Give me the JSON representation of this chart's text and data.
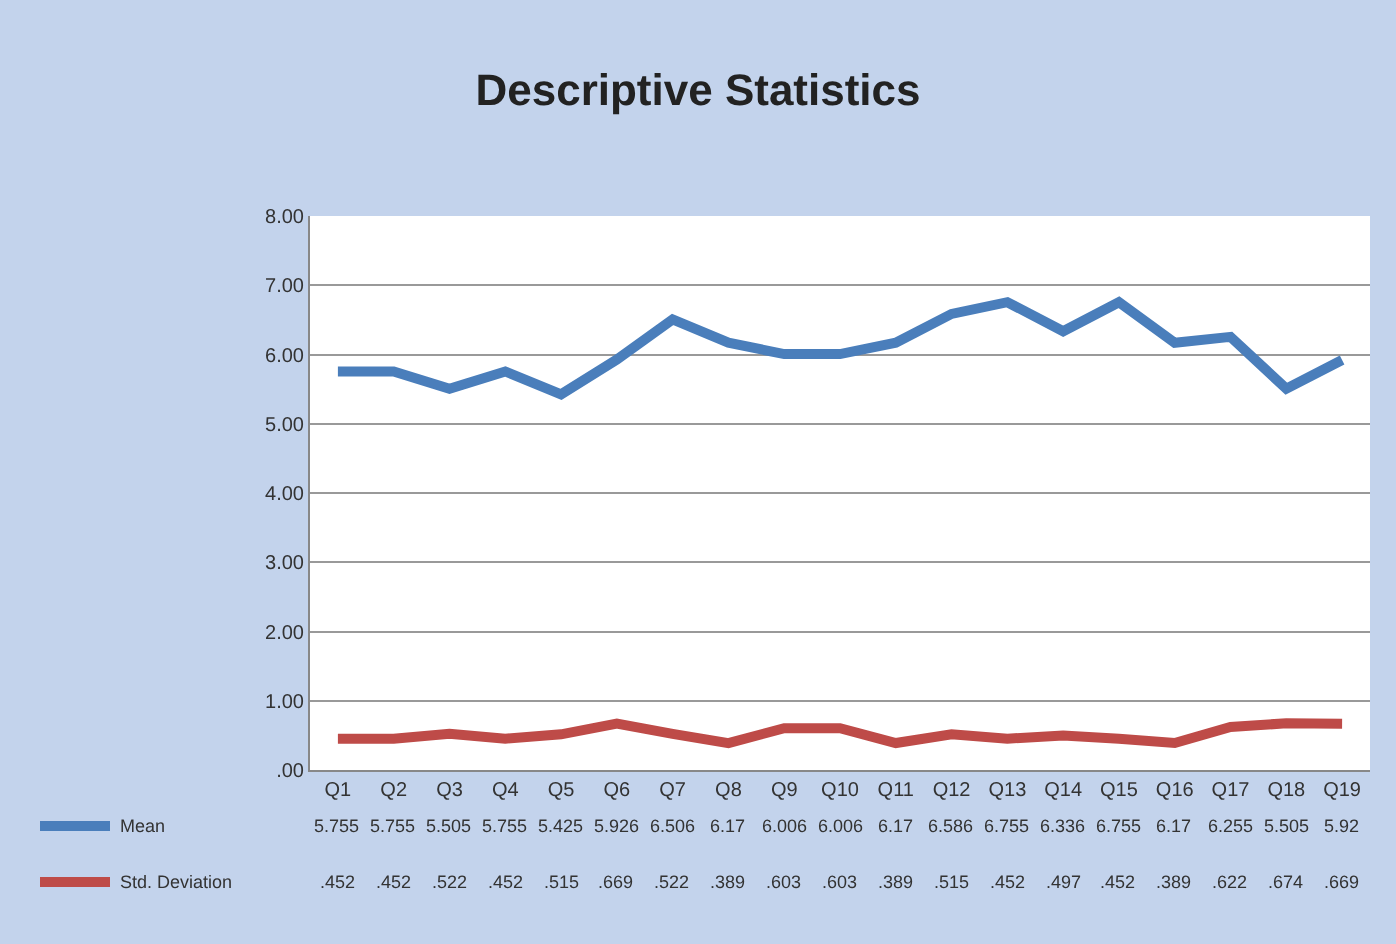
{
  "chart_data": {
    "type": "line",
    "title": "Descriptive Statistics",
    "categories": [
      "Q1",
      "Q2",
      "Q3",
      "Q4",
      "Q5",
      "Q6",
      "Q7",
      "Q8",
      "Q9",
      "Q10",
      "Q11",
      "Q12",
      "Q13",
      "Q14",
      "Q15",
      "Q16",
      "Q17",
      "Q18",
      "Q19"
    ],
    "series": [
      {
        "name": "Mean",
        "color": "#4a7ebb",
        "values": [
          5.755,
          5.755,
          5.505,
          5.755,
          5.425,
          5.926,
          6.506,
          6.17,
          6.006,
          6.006,
          6.17,
          6.586,
          6.755,
          6.336,
          6.755,
          6.17,
          6.255,
          5.505,
          5.92
        ],
        "value_labels": [
          "5.755",
          "5.755",
          "5.505",
          "5.755",
          "5.425",
          "5.926",
          "6.506",
          "6.17",
          "6.006",
          "6.006",
          "6.17",
          "6.586",
          "6.755",
          "6.336",
          "6.755",
          "6.17",
          "6.255",
          "5.505",
          "5.92"
        ]
      },
      {
        "name": "Std. Deviation",
        "color": "#be4b48",
        "values": [
          0.452,
          0.452,
          0.522,
          0.452,
          0.515,
          0.669,
          0.522,
          0.389,
          0.603,
          0.603,
          0.389,
          0.515,
          0.452,
          0.497,
          0.452,
          0.389,
          0.622,
          0.674,
          0.669
        ],
        "value_labels": [
          ".452",
          ".452",
          ".522",
          ".452",
          ".515",
          ".669",
          ".522",
          ".389",
          ".603",
          ".603",
          ".389",
          ".515",
          ".452",
          ".497",
          ".452",
          ".389",
          ".622",
          ".674",
          ".669"
        ]
      }
    ],
    "ylim": [
      0,
      8
    ],
    "yticks": [
      {
        "value": 0,
        "label": ".00"
      },
      {
        "value": 1,
        "label": "1.00"
      },
      {
        "value": 2,
        "label": "2.00"
      },
      {
        "value": 3,
        "label": "3.00"
      },
      {
        "value": 4,
        "label": "4.00"
      },
      {
        "value": 5,
        "label": "5.00"
      },
      {
        "value": 6,
        "label": "6.00"
      },
      {
        "value": 7,
        "label": "7.00"
      },
      {
        "value": 8,
        "label": "8.00"
      }
    ],
    "grid": "y",
    "legend": "bottom",
    "marker": "none",
    "line_style": "solid"
  }
}
